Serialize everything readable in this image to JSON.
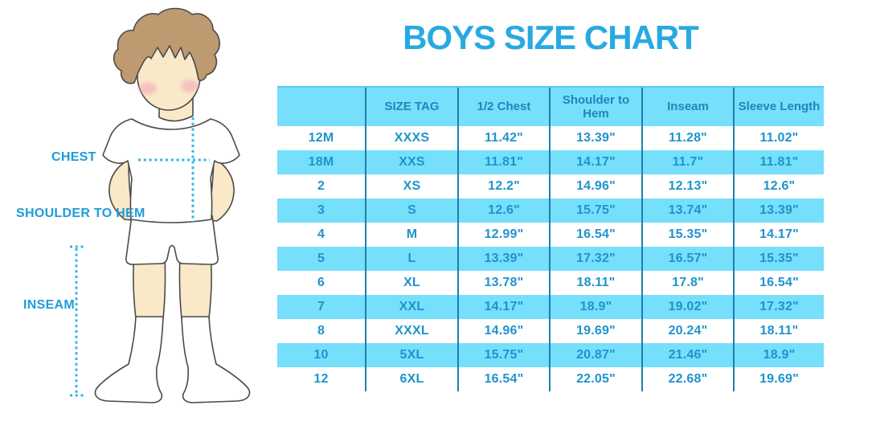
{
  "title": "BOYS SIZE CHART",
  "figure_labels": {
    "chest": "CHEST",
    "shoulder_to_hem": "SHOULDER TO HEM",
    "inseam": "INSEAM"
  },
  "chart_data": {
    "type": "table",
    "title": "BOYS SIZE CHART",
    "columns": [
      "",
      "SIZE TAG",
      "1/2 Chest",
      "Shoulder to Hem",
      "Inseam",
      "Sleeve Length"
    ],
    "rows": [
      [
        "12M",
        "XXXS",
        "11.42\"",
        "13.39\"",
        "11.28\"",
        "11.02\""
      ],
      [
        "18M",
        "XXS",
        "11.81\"",
        "14.17\"",
        "11.7\"",
        "11.81\""
      ],
      [
        "2",
        "XS",
        "12.2\"",
        "14.96\"",
        "12.13\"",
        "12.6\""
      ],
      [
        "3",
        "S",
        "12.6\"",
        "15.75\"",
        "13.74\"",
        "13.39\""
      ],
      [
        "4",
        "M",
        "12.99\"",
        "16.54\"",
        "15.35\"",
        "14.17\""
      ],
      [
        "5",
        "L",
        "13.39\"",
        "17.32\"",
        "16.57\"",
        "15.35\""
      ],
      [
        "6",
        "XL",
        "13.78\"",
        "18.11\"",
        "17.8\"",
        "16.54\""
      ],
      [
        "7",
        "XXL",
        "14.17\"",
        "18.9\"",
        "19.02\"",
        "17.32\""
      ],
      [
        "8",
        "XXXL",
        "14.96\"",
        "19.69\"",
        "20.24\"",
        "18.11\""
      ],
      [
        "10",
        "5XL",
        "15.75\"",
        "20.87\"",
        "21.46\"",
        "18.9\""
      ],
      [
        "12",
        "6XL",
        "16.54\"",
        "22.05\"",
        "22.68\"",
        "19.69\""
      ]
    ],
    "units": "inches"
  },
  "colors": {
    "title_blue": "#29A9E1",
    "table_text_blue": "#1F93CD",
    "stripe_cyan": "#76DFFB",
    "divider_blue": "#1F7FAD",
    "dotted_line_blue": "#2BB6EC",
    "label_blue": "#209BD8",
    "hair_brown": "#BD9A70",
    "skin": "#FAE9C8"
  }
}
